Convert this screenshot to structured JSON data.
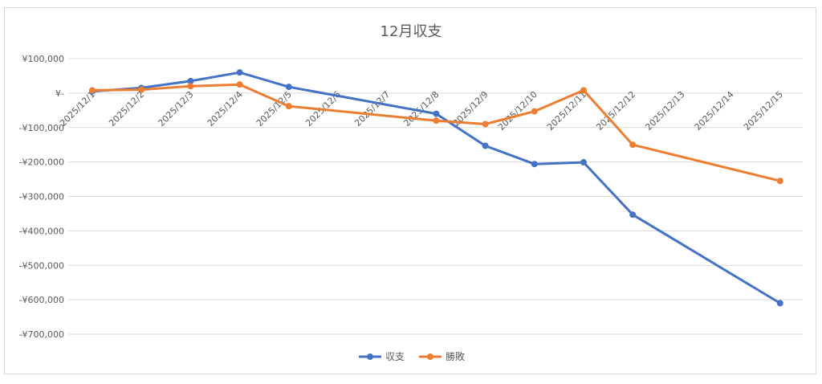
{
  "chart_data": {
    "type": "line",
    "title": "12月収支",
    "categories": [
      "2025/12/1",
      "2025/12/2",
      "2025/12/3",
      "2025/12/4",
      "2025/12/5",
      "2025/12/6",
      "2025/12/7",
      "2025/12/8",
      "2025/12/9",
      "2025/12/10",
      "2025/12/11",
      "2025/12/12",
      "2025/12/13",
      "2025/12/14",
      "2025/12/15"
    ],
    "y_ticks": [
      {
        "value": 100000,
        "label": "¥100,000"
      },
      {
        "value": 0,
        "label": "¥-"
      },
      {
        "value": -100000,
        "label": "-¥100,000"
      },
      {
        "value": -200000,
        "label": "-¥200,000"
      },
      {
        "value": -300000,
        "label": "-¥300,000"
      },
      {
        "value": -400000,
        "label": "-¥400,000"
      },
      {
        "value": -500000,
        "label": "-¥500,000"
      },
      {
        "value": -600000,
        "label": "-¥600,000"
      },
      {
        "value": -700000,
        "label": "-¥700,000"
      }
    ],
    "ylim": [
      -700000,
      100000
    ],
    "grid": true,
    "legend_position": "bottom",
    "series": [
      {
        "name": "収支",
        "color": "#4472c4",
        "points": [
          {
            "x": "2025/12/1",
            "y": 5000
          },
          {
            "x": "2025/12/2",
            "y": 15000
          },
          {
            "x": "2025/12/3",
            "y": 35000
          },
          {
            "x": "2025/12/4",
            "y": 60000
          },
          {
            "x": "2025/12/5",
            "y": 18000
          },
          {
            "x": "2025/12/8",
            "y": -60000
          },
          {
            "x": "2025/12/9",
            "y": -153000
          },
          {
            "x": "2025/12/10",
            "y": -206000
          },
          {
            "x": "2025/12/11",
            "y": -201000
          },
          {
            "x": "2025/12/12",
            "y": -353000
          },
          {
            "x": "2025/12/15",
            "y": -610000
          }
        ]
      },
      {
        "name": "勝敗",
        "color": "#ed7d31",
        "points": [
          {
            "x": "2025/12/1",
            "y": 8000
          },
          {
            "x": "2025/12/2",
            "y": 10000
          },
          {
            "x": "2025/12/3",
            "y": 20000
          },
          {
            "x": "2025/12/4",
            "y": 25000
          },
          {
            "x": "2025/12/5",
            "y": -38000
          },
          {
            "x": "2025/12/8",
            "y": -80000
          },
          {
            "x": "2025/12/9",
            "y": -90000
          },
          {
            "x": "2025/12/10",
            "y": -53000
          },
          {
            "x": "2025/12/11",
            "y": 8000
          },
          {
            "x": "2025/12/12",
            "y": -150000
          },
          {
            "x": "2025/12/15",
            "y": -255000
          }
        ]
      }
    ]
  }
}
